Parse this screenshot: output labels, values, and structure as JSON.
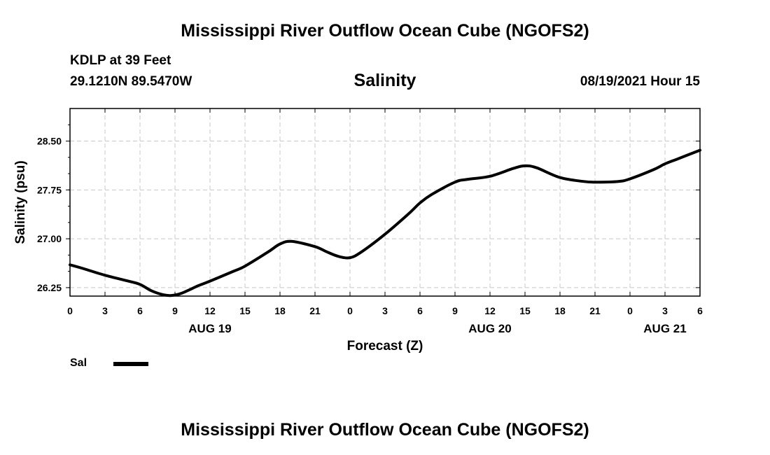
{
  "header": {
    "title": "Mississippi River Outflow Ocean Cube (NGOFS2)",
    "station": "KDLP at 39 Feet",
    "coordinates": "29.1210N  89.5470W",
    "variable": "Salinity",
    "datetime": "08/19/2021 Hour 15"
  },
  "footer": {
    "title": "Mississippi River Outflow Ocean Cube (NGOFS2)"
  },
  "legend": {
    "label": "Sal",
    "color": "#000000"
  },
  "chart_data": {
    "type": "line",
    "title": "Salinity",
    "xlabel": "Forecast (Z)",
    "ylabel": "Salinity (psu)",
    "xlim": [
      0,
      54
    ],
    "ylim": [
      26.12,
      29.0
    ],
    "x_ticks": [
      0,
      3,
      6,
      9,
      12,
      15,
      18,
      21,
      24,
      27,
      30,
      33,
      36,
      39,
      42,
      45,
      48,
      51,
      54
    ],
    "x_tick_labels": [
      "0",
      "3",
      "6",
      "9",
      "12",
      "15",
      "18",
      "21",
      "0",
      "3",
      "6",
      "9",
      "12",
      "15",
      "18",
      "21",
      "0",
      "3",
      "6"
    ],
    "y_ticks": [
      26.25,
      27.0,
      27.75,
      28.5
    ],
    "y_tick_labels": [
      "26.25",
      "27.00",
      "27.75",
      "28.50"
    ],
    "date_labels": [
      {
        "x": 12,
        "label": "AUG 19"
      },
      {
        "x": 36,
        "label": "AUG 20"
      },
      {
        "x": 51,
        "label": "AUG 21"
      }
    ],
    "grid": true,
    "series": [
      {
        "name": "Sal",
        "color": "#000000",
        "x": [
          0,
          1,
          3,
          5,
          6,
          7,
          8,
          8.7,
          9.5,
          11,
          12,
          14,
          15,
          17,
          18,
          19,
          21,
          22,
          23,
          24,
          25,
          27,
          29,
          30,
          31,
          33,
          34,
          36,
          38,
          39,
          40,
          42,
          44,
          45,
          47,
          48,
          50,
          51,
          52,
          54
        ],
        "values": [
          26.6,
          26.55,
          26.44,
          26.35,
          26.3,
          26.2,
          26.14,
          26.13,
          26.16,
          26.28,
          26.35,
          26.5,
          26.58,
          26.8,
          26.92,
          26.96,
          26.88,
          26.8,
          26.73,
          26.71,
          26.8,
          27.07,
          27.38,
          27.55,
          27.68,
          27.87,
          27.91,
          27.96,
          28.08,
          28.12,
          28.09,
          27.94,
          27.88,
          27.87,
          27.88,
          27.92,
          28.06,
          28.15,
          28.22,
          28.36
        ]
      }
    ]
  }
}
